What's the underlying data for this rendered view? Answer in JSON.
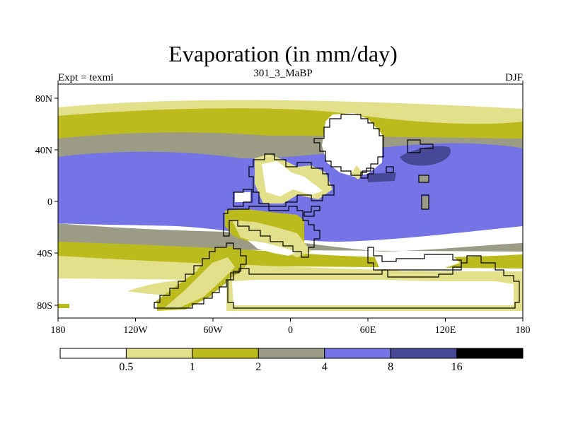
{
  "title": "Evaporation (in mm/day)",
  "left_string": "Expt = texmi",
  "center_string": "301_3_MaBP",
  "right_string": "DJF",
  "map": {
    "lon_ticks": [
      "180",
      "120W",
      "60W",
      "0",
      "60E",
      "120E",
      "180"
    ],
    "lat_ticks": [
      "80N",
      "40N",
      "0",
      "40S",
      "80S"
    ]
  },
  "colorbar": {
    "levels": [
      "0.5",
      "1",
      "2",
      "4",
      "8",
      "16"
    ],
    "colors": [
      "#ffffff",
      "#e3e08c",
      "#bcbb1d",
      "#9b9b86",
      "#7474e6",
      "#484898",
      "#000000"
    ]
  }
}
